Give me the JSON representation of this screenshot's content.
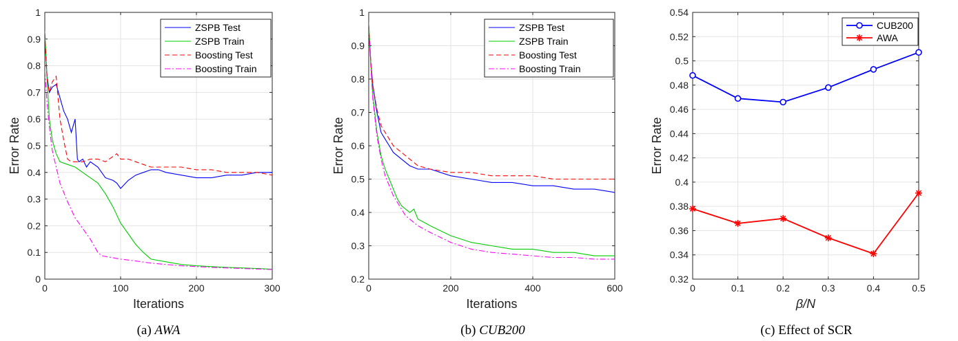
{
  "figures": [
    {
      "caption_prefix": "(a) ",
      "caption_main": "AWA",
      "caption_italic": true
    },
    {
      "caption_prefix": "(b) ",
      "caption_main": "CUB200",
      "caption_italic": true
    },
    {
      "caption_prefix": "(c) ",
      "caption_main": "Effect of SCR",
      "caption_italic": false
    }
  ],
  "chart_data": [
    {
      "type": "line",
      "xlabel": "Iterations",
      "ylabel": "Error Rate",
      "xlim": [
        0,
        300
      ],
      "ylim": [
        0,
        1
      ],
      "xticks": [
        0,
        100,
        200,
        300
      ],
      "yticks": [
        0,
        0.1,
        0.2,
        0.3,
        0.4,
        0.5,
        0.6,
        0.7,
        0.8,
        0.9,
        1
      ],
      "ytick_labels": [
        "0",
        "0.1",
        "0.2",
        "0.3",
        "0.4",
        "0.5",
        "0.6",
        "0.7",
        "0.8",
        "0.9",
        "1"
      ],
      "grid": true,
      "legend_position": "top-right",
      "series": [
        {
          "name": "ZSPB Test",
          "color": "#0000ff",
          "dash": "",
          "x": [
            0,
            3,
            6,
            10,
            15,
            20,
            25,
            30,
            35,
            40,
            43,
            45,
            50,
            55,
            60,
            70,
            80,
            90,
            95,
            100,
            110,
            120,
            130,
            140,
            150,
            160,
            180,
            200,
            220,
            240,
            260,
            280,
            300
          ],
          "y": [
            0.9,
            0.76,
            0.7,
            0.72,
            0.73,
            0.68,
            0.63,
            0.6,
            0.55,
            0.6,
            0.45,
            0.44,
            0.45,
            0.42,
            0.44,
            0.42,
            0.38,
            0.37,
            0.36,
            0.34,
            0.37,
            0.39,
            0.4,
            0.41,
            0.41,
            0.4,
            0.39,
            0.38,
            0.38,
            0.39,
            0.39,
            0.4,
            0.4
          ]
        },
        {
          "name": "ZSPB Train",
          "color": "#00cc00",
          "dash": "",
          "x": [
            0,
            3,
            6,
            10,
            15,
            20,
            30,
            40,
            50,
            60,
            70,
            80,
            90,
            100,
            110,
            120,
            130,
            140,
            160,
            180,
            200,
            220,
            240,
            260,
            280,
            300
          ],
          "y": [
            0.93,
            0.75,
            0.6,
            0.52,
            0.47,
            0.44,
            0.43,
            0.42,
            0.4,
            0.38,
            0.36,
            0.32,
            0.27,
            0.21,
            0.17,
            0.13,
            0.1,
            0.075,
            0.065,
            0.055,
            0.05,
            0.047,
            0.044,
            0.042,
            0.04,
            0.037
          ]
        },
        {
          "name": "Boosting Test",
          "color": "#ff0000",
          "dash": "7,4",
          "x": [
            0,
            3,
            6,
            10,
            15,
            20,
            25,
            30,
            35,
            40,
            50,
            60,
            70,
            80,
            90,
            95,
            100,
            110,
            120,
            130,
            140,
            160,
            180,
            200,
            220,
            240,
            260,
            280,
            300
          ],
          "y": [
            0.92,
            0.75,
            0.7,
            0.74,
            0.76,
            0.6,
            0.52,
            0.45,
            0.44,
            0.44,
            0.44,
            0.45,
            0.45,
            0.44,
            0.46,
            0.47,
            0.45,
            0.45,
            0.44,
            0.43,
            0.42,
            0.42,
            0.42,
            0.41,
            0.41,
            0.4,
            0.4,
            0.4,
            0.39
          ]
        },
        {
          "name": "Boosting Train",
          "color": "#ff00ff",
          "dash": "8,3,2,3",
          "x": [
            0,
            3,
            6,
            10,
            15,
            20,
            30,
            40,
            50,
            60,
            70,
            75,
            80,
            100,
            120,
            140,
            160,
            180,
            200,
            220,
            240,
            260,
            280,
            300
          ],
          "y": [
            0.78,
            0.66,
            0.57,
            0.48,
            0.42,
            0.36,
            0.29,
            0.23,
            0.19,
            0.15,
            0.1,
            0.088,
            0.085,
            0.075,
            0.068,
            0.06,
            0.055,
            0.05,
            0.047,
            0.044,
            0.042,
            0.04,
            0.038,
            0.036
          ]
        }
      ]
    },
    {
      "type": "line",
      "xlabel": "Iterations",
      "ylabel": "Error Rate",
      "xlim": [
        0,
        600
      ],
      "ylim": [
        0.2,
        1
      ],
      "xticks": [
        0,
        200,
        400,
        600
      ],
      "yticks": [
        0.2,
        0.3,
        0.4,
        0.5,
        0.6,
        0.7,
        0.8,
        0.9,
        1
      ],
      "ytick_labels": [
        "0.2",
        "0.3",
        "0.4",
        "0.5",
        "0.6",
        "0.7",
        "0.8",
        "0.9",
        "1"
      ],
      "grid": true,
      "legend_position": "top-right",
      "series": [
        {
          "name": "ZSPB Test",
          "color": "#0000ff",
          "dash": "",
          "x": [
            0,
            5,
            10,
            20,
            30,
            40,
            50,
            60,
            80,
            100,
            120,
            150,
            200,
            250,
            300,
            350,
            400,
            450,
            500,
            550,
            600
          ],
          "y": [
            0.95,
            0.85,
            0.78,
            0.7,
            0.64,
            0.62,
            0.6,
            0.58,
            0.56,
            0.54,
            0.53,
            0.53,
            0.51,
            0.5,
            0.49,
            0.49,
            0.48,
            0.48,
            0.47,
            0.47,
            0.46
          ]
        },
        {
          "name": "ZSPB Train",
          "color": "#00cc00",
          "dash": "",
          "x": [
            0,
            5,
            10,
            20,
            30,
            40,
            50,
            60,
            70,
            80,
            90,
            100,
            110,
            120,
            150,
            200,
            250,
            300,
            350,
            400,
            450,
            500,
            550,
            600
          ],
          "y": [
            0.97,
            0.85,
            0.75,
            0.64,
            0.57,
            0.53,
            0.5,
            0.47,
            0.44,
            0.42,
            0.41,
            0.4,
            0.41,
            0.38,
            0.36,
            0.33,
            0.31,
            0.3,
            0.29,
            0.29,
            0.28,
            0.28,
            0.27,
            0.27
          ]
        },
        {
          "name": "Boosting Test",
          "color": "#ff0000",
          "dash": "7,4",
          "x": [
            0,
            5,
            10,
            20,
            30,
            40,
            50,
            60,
            80,
            100,
            120,
            150,
            200,
            250,
            300,
            350,
            400,
            450,
            500,
            550,
            600
          ],
          "y": [
            0.96,
            0.85,
            0.78,
            0.71,
            0.66,
            0.64,
            0.62,
            0.6,
            0.58,
            0.56,
            0.54,
            0.53,
            0.52,
            0.52,
            0.51,
            0.51,
            0.51,
            0.5,
            0.5,
            0.5,
            0.5
          ]
        },
        {
          "name": "Boosting Train",
          "color": "#ff00ff",
          "dash": "8,3,2,3",
          "x": [
            0,
            5,
            10,
            20,
            30,
            40,
            50,
            60,
            70,
            80,
            90,
            100,
            120,
            150,
            200,
            250,
            300,
            350,
            400,
            450,
            500,
            550,
            600
          ],
          "y": [
            0.95,
            0.84,
            0.74,
            0.63,
            0.56,
            0.51,
            0.48,
            0.45,
            0.43,
            0.41,
            0.39,
            0.38,
            0.36,
            0.34,
            0.31,
            0.29,
            0.28,
            0.275,
            0.27,
            0.265,
            0.265,
            0.26,
            0.26
          ]
        }
      ]
    },
    {
      "type": "line",
      "xlabel": "β/N",
      "ylabel": "Error Rate",
      "xlim": [
        0,
        0.5
      ],
      "ylim": [
        0.32,
        0.54
      ],
      "xticks": [
        0,
        0.1,
        0.2,
        0.3,
        0.4,
        0.5
      ],
      "xtick_labels": [
        "0",
        "0.1",
        "0.2",
        "0.3",
        "0.4",
        "0.5"
      ],
      "yticks": [
        0.32,
        0.34,
        0.36,
        0.38,
        0.4,
        0.42,
        0.44,
        0.46,
        0.48,
        0.5,
        0.52,
        0.54
      ],
      "ytick_labels": [
        "0.32",
        "0.34",
        "0.36",
        "0.38",
        "0.4",
        "0.42",
        "0.44",
        "0.46",
        "0.48",
        "0.5",
        "0.52",
        "0.54"
      ],
      "grid": true,
      "legend_position": "top-right",
      "series": [
        {
          "name": "CUB200",
          "color": "#0000ff",
          "marker": "circle",
          "x": [
            0,
            0.1,
            0.2,
            0.3,
            0.4,
            0.5
          ],
          "y": [
            0.488,
            0.469,
            0.466,
            0.478,
            0.493,
            0.507
          ]
        },
        {
          "name": "AWA",
          "color": "#ff0000",
          "marker": "star",
          "x": [
            0,
            0.1,
            0.2,
            0.3,
            0.4,
            0.5
          ],
          "y": [
            0.378,
            0.366,
            0.37,
            0.354,
            0.341,
            0.391
          ]
        }
      ]
    }
  ]
}
